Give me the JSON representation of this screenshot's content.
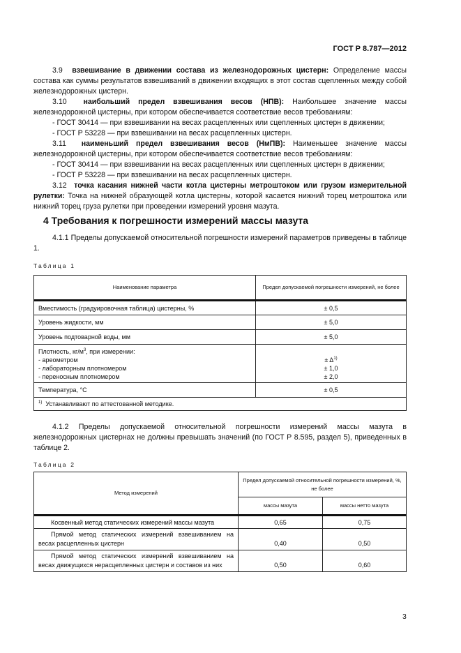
{
  "header": {
    "doc_code": "ГОСТ Р 8.787—2012"
  },
  "paragraphs": {
    "p39": {
      "num": "3.9",
      "term": "взвешивание в движении состава из железнодорожных цистерн:",
      "text": " Определение массы состава как суммы результатов взвешиваний в движении входящих в этот состав сцепленных между собой железнодорожных цистерн."
    },
    "p310": {
      "num": "3.10",
      "term": "наибольший предел взвешивания весов (НПВ):",
      "text": " Наибольшее значение массы железнодорожной цистерны, при котором обеспечивается соответствие весов требованиям:",
      "items": [
        "- ГОСТ  30414 — при взвешивании на весах расцепленных или сцепленных цистерн в движении;",
        "- ГОСТ  Р  53228 — при взвешивании на весах расцепленных цистерн."
      ]
    },
    "p311": {
      "num": "3.11",
      "term": "наименьший предел взвешивания весов (НмПВ):",
      "text": " Наименьшее значение массы железнодорожной цистерны, при котором обеспечивается соответствие весов требованиям:",
      "items": [
        "- ГОСТ  30414 — при взвешивании на весах расцепленных или сцепленных цистерн в движении;",
        "- ГОСТ  Р  53228 — при взвешивании на весах расцепленных цистерн."
      ]
    },
    "p312": {
      "num": "3.12",
      "term": "точка касания нижней части котла цистерны метроштоком или грузом измерительной рулетки:",
      "text": " Точка на нижней образующей котла цистерны, которой касается нижний торец метроштока или нижний торец груза рулетки при проведении измерений уровня мазута."
    }
  },
  "section4": {
    "heading": "4  Требования к погрешности измерений массы мазута",
    "p411": "4.1.1 Пределы допускаемой относительной погрешности измерений параметров приведены в таблице 1.",
    "p412": "4.1.2 Пределы допускаемой относительной погрешности измерений массы мазута в железнодорожных цистернах не должны превышать значений (по ГОСТ Р 8.595, раздел 5), приведенных в таблице 2."
  },
  "table1": {
    "caption": "Таблица 1",
    "headers": [
      "Наименование параметра",
      "Предел допускаемой погрешности измерений, не более"
    ],
    "rows": [
      [
        "Вместимость (градуировочная таблица) цистерны, %",
        "± 0,5"
      ],
      [
        "Уровень жидкости, мм",
        "± 5,0"
      ],
      [
        "Уровень подтоварной воды, мм",
        "± 5,0"
      ]
    ],
    "density": {
      "label": "Плотность, кг/м",
      "sup": "3",
      "label_rest": ", при измерении:",
      "items": [
        "- ареометром",
        "- лабораторным плотномером",
        "- переносным плотномером"
      ],
      "values": [
        "± Δ",
        "± 1,0",
        "± 2,0"
      ],
      "value_sup": "1)"
    },
    "temp": [
      "Температура, °С",
      "± 0,5"
    ],
    "footnote_mark": "1)",
    "footnote": "Устанавливают по аттестованной методике."
  },
  "table2": {
    "caption": "Таблица 2",
    "headers": {
      "method": "Метод измерений",
      "limit": "Предел допускаемой относительной погрешности измерений, %, не более",
      "mass": "массы мазута",
      "net": "массы нетто мазута"
    },
    "rows": [
      [
        "Косвенный метод статических измерений массы мазута",
        "0,65",
        "0,75"
      ],
      [
        "Прямой метод статических измерений взвешиванием на весах расцепленных цистерн",
        "0,40",
        "0,50"
      ],
      [
        "Прямой метод статических измерений взвешиванием на весах движущихся нерасцепленных цистерн и составов из них",
        "0,50",
        "0,60"
      ]
    ]
  },
  "page_number": "3"
}
